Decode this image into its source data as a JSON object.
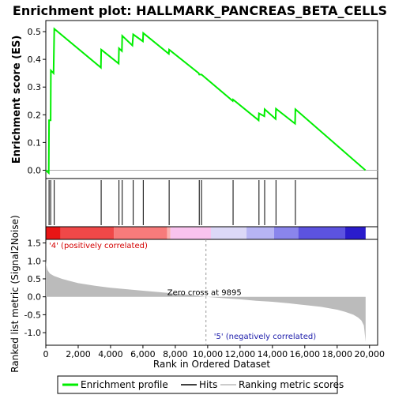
{
  "chart_data": {
    "type": "line",
    "title": "Enrichment plot: HALLMARK_PANCREAS_BETA_CELLS",
    "xlabel": "Rank in Ordered Dataset",
    "es_ylabel": "Enrichment score (ES)",
    "metric_ylabel": "Ranked list metric (Signal2Noise)",
    "xlim": [
      0,
      20500
    ],
    "x_ticks": [
      0,
      2000,
      4000,
      6000,
      8000,
      10000,
      12000,
      14000,
      16000,
      18000,
      20000
    ],
    "x_tick_labels": [
      "0",
      "2,000",
      "4,000",
      "6,000",
      "8,000",
      "10,000",
      "12,000",
      "14,000",
      "16,000",
      "18,000",
      "20,000"
    ],
    "es_ylim": [
      -0.03,
      0.54
    ],
    "es_ticks": [
      0.0,
      0.1,
      0.2,
      0.3,
      0.4,
      0.5
    ],
    "es_tick_labels": [
      "0.0",
      "0.1",
      "0.2",
      "0.3",
      "0.4",
      "0.5"
    ],
    "metric_ylim": [
      -1.35,
      1.6
    ],
    "metric_ticks": [
      -1.0,
      -0.5,
      0.0,
      0.5,
      1.0,
      1.5
    ],
    "metric_tick_labels": [
      "-1.0",
      "-0.5",
      "0.0",
      "0.5",
      "1.0",
      "1.5"
    ],
    "enrichment_profile": {
      "name": "Enrichment profile",
      "color": "#00ee00",
      "x": [
        0,
        180,
        200,
        300,
        310,
        480,
        520,
        3400,
        3420,
        4500,
        4520,
        4700,
        4720,
        5350,
        5400,
        6000,
        6020,
        7600,
        7620,
        9450,
        9480,
        9600,
        9620,
        11550,
        11570,
        13150,
        13170,
        13500,
        13520,
        14200,
        14220,
        15400,
        15420,
        19750
      ],
      "y": [
        0.0,
        -0.01,
        0.18,
        0.18,
        0.36,
        0.35,
        0.51,
        0.37,
        0.435,
        0.385,
        0.44,
        0.43,
        0.485,
        0.45,
        0.49,
        0.465,
        0.495,
        0.42,
        0.435,
        0.35,
        0.345,
        0.345,
        0.345,
        0.25,
        0.255,
        0.18,
        0.205,
        0.195,
        0.22,
        0.185,
        0.222,
        0.168,
        0.22,
        0.0
      ]
    },
    "hits": {
      "name": "Hits",
      "x": [
        200,
        300,
        520,
        3420,
        4520,
        4720,
        5400,
        6020,
        7620,
        9480,
        9620,
        11570,
        13170,
        13520,
        14220,
        15420
      ]
    },
    "ranking_metric": {
      "name": "Ranking metric scores",
      "x": [
        0,
        30,
        100,
        250,
        500,
        1000,
        1500,
        2000,
        3000,
        4000,
        5000,
        6000,
        7000,
        8000,
        9000,
        9895,
        11000,
        12000,
        13000,
        14000,
        15000,
        16000,
        17000,
        18000,
        18500,
        19000,
        19300,
        19500,
        19650,
        19700,
        19760
      ],
      "y": [
        1.02,
        0.88,
        0.75,
        0.65,
        0.58,
        0.5,
        0.44,
        0.38,
        0.31,
        0.25,
        0.21,
        0.17,
        0.13,
        0.09,
        0.05,
        0.0,
        -0.04,
        -0.07,
        -0.11,
        -0.14,
        -0.18,
        -0.23,
        -0.28,
        -0.36,
        -0.42,
        -0.5,
        -0.58,
        -0.66,
        -0.8,
        -1.0,
        -1.25
      ]
    },
    "zero_cross_label": "Zero cross at 9895",
    "zero_cross_x": 9895,
    "positive_label": "'4' (positively correlated)",
    "negative_label": "'5' (negatively correlated)",
    "heatmap_bands": [
      {
        "start": 0,
        "end": 900,
        "color": "#e81515"
      },
      {
        "start": 900,
        "end": 4200,
        "color": "#f04848"
      },
      {
        "start": 4200,
        "end": 7500,
        "color": "#f77b7b"
      },
      {
        "start": 7500,
        "end": 7700,
        "color": "#fab0b0"
      },
      {
        "start": 7700,
        "end": 10200,
        "color": "#f9c3ee"
      },
      {
        "start": 10200,
        "end": 12400,
        "color": "#dcd8f7"
      },
      {
        "start": 12400,
        "end": 14100,
        "color": "#b7b4f4"
      },
      {
        "start": 14100,
        "end": 15600,
        "color": "#8a85ec"
      },
      {
        "start": 15600,
        "end": 18500,
        "color": "#5c53e0"
      },
      {
        "start": 18500,
        "end": 19760,
        "color": "#2a1ccc"
      }
    ],
    "legend": [
      {
        "name": "Enrichment profile",
        "color": "#00ee00"
      },
      {
        "name": "Hits",
        "color": "#000000"
      },
      {
        "name": "Ranking metric scores",
        "color": "#bbbbbb"
      }
    ]
  }
}
